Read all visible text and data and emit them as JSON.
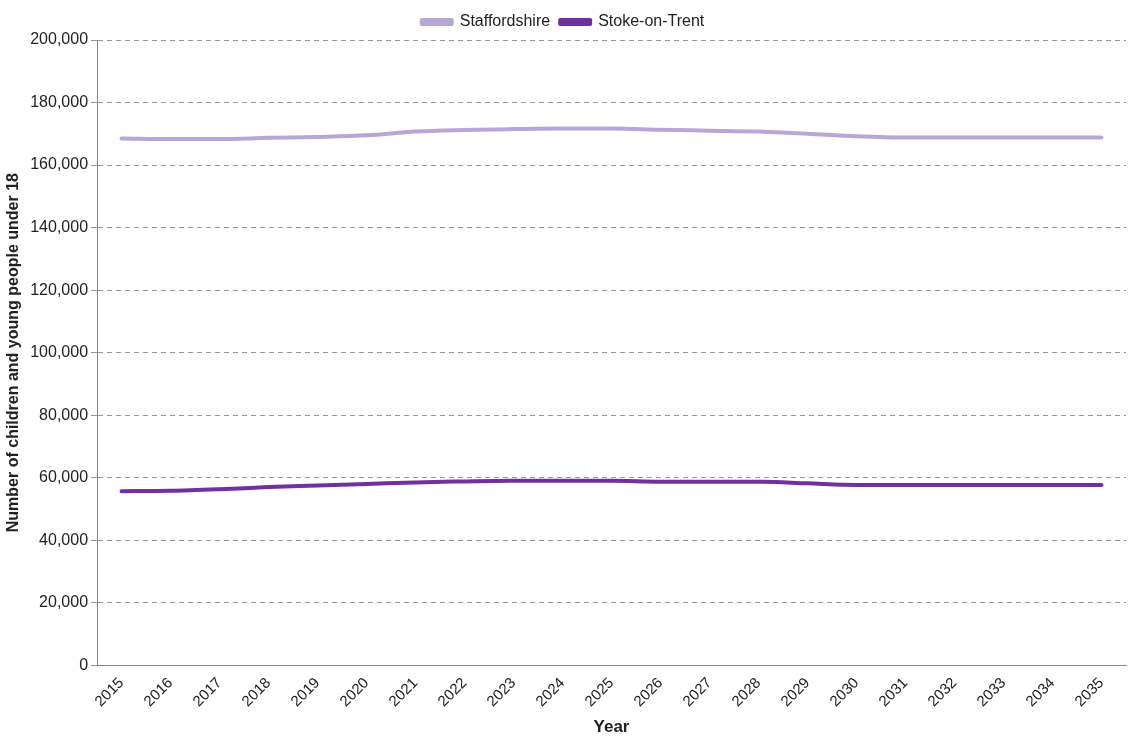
{
  "chart_data": {
    "type": "line",
    "xlabel": "Year",
    "ylabel": "Number of children and young people under 18",
    "categories": [
      "2015",
      "2016",
      "2017",
      "2018",
      "2019",
      "2020",
      "2021",
      "2022",
      "2023",
      "2024",
      "2025",
      "2026",
      "2027",
      "2028",
      "2029",
      "2030",
      "2031",
      "2032",
      "2033",
      "2034",
      "2035"
    ],
    "series": [
      {
        "name": "Staffordshire",
        "color": "#b7a7d6",
        "values": [
          168500,
          168300,
          168300,
          168700,
          169000,
          169500,
          170700,
          171200,
          171500,
          171700,
          171700,
          171300,
          171000,
          170700,
          170000,
          169200,
          168800,
          168800,
          168800,
          168800,
          168800
        ]
      },
      {
        "name": "Stoke-on-Trent",
        "color": "#7030a0",
        "values": [
          55700,
          55800,
          56300,
          57000,
          57500,
          58000,
          58500,
          58800,
          59000,
          59000,
          59000,
          58700,
          58700,
          58700,
          58200,
          57700,
          57700,
          57700,
          57700,
          57700,
          57700
        ]
      }
    ],
    "ylim": [
      0,
      200000
    ],
    "yticks": [
      0,
      {
        "value": 20000,
        "label": "20,000"
      },
      {
        "value": 40000,
        "label": "40,000"
      },
      {
        "value": 60000,
        "label": "60,000"
      },
      {
        "value": 80000,
        "label": "80,000"
      },
      {
        "value": 100000,
        "label": "100,000"
      },
      {
        "value": 120000,
        "label": "120,000"
      },
      {
        "value": 140000,
        "label": "140,000"
      },
      {
        "value": 160000,
        "label": "160,000"
      },
      {
        "value": 180000,
        "label": "180,000"
      },
      {
        "value": 200000,
        "label": "200,000"
      }
    ],
    "grid": "y",
    "legend": "top",
    "marker": "none",
    "line_style": "solid"
  }
}
